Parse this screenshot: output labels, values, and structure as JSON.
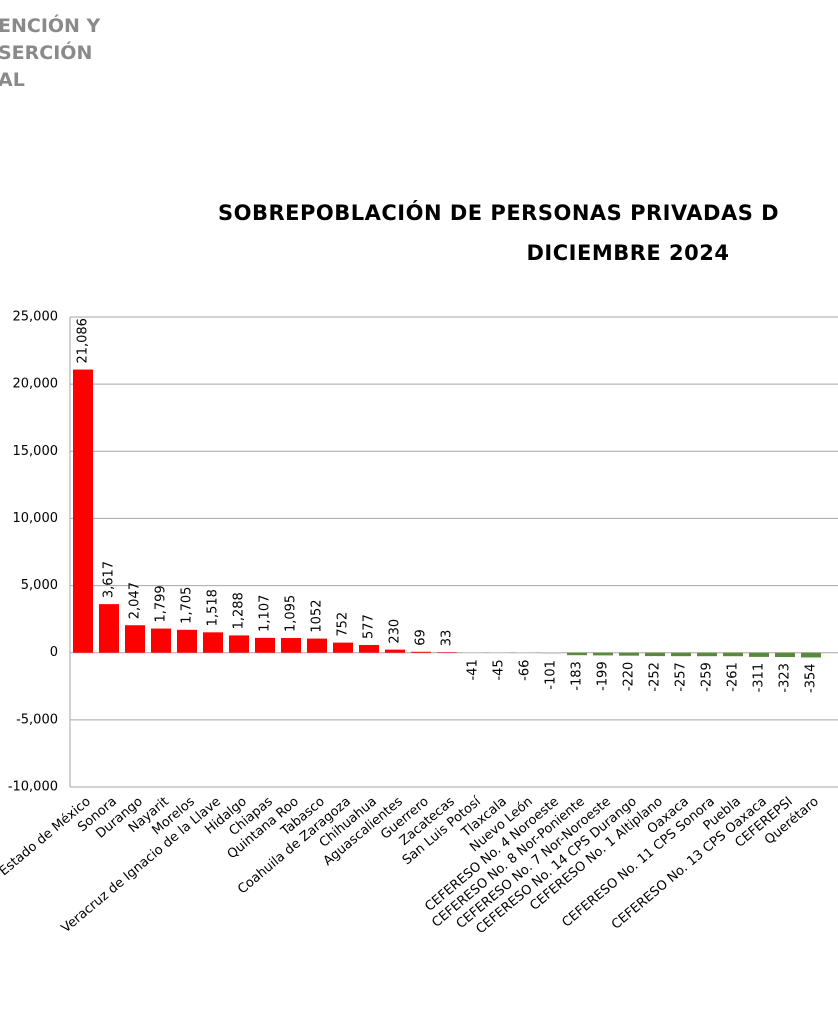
{
  "header": {
    "lines": [
      "ENCIÓN Y",
      "SERCIÓN",
      "AL"
    ]
  },
  "chart_data": {
    "type": "bar",
    "title": "SOBREPOBLACIÓN DE PERSONAS PRIVADAS D",
    "subtitle": "DICIEMBRE 2024",
    "categories": [
      "Estado de México",
      "Sonora",
      "Durango",
      "Nayarit",
      "Morelos",
      "Veracruz de Ignacio de la Llave",
      "Hidalgo",
      "Chiapas",
      "Quintana Roo",
      "Tabasco",
      "Coahuila de Zaragoza",
      "Chihuahua",
      "Aguascalientes",
      "Guerrero",
      "Zacatecas",
      "San Luis Potosí",
      "Tlaxcala",
      "Nuevo León",
      "CEFERESO No. 4 Noroeste",
      "CEFERESO No. 8 Nor-Poniente",
      "CEFERESO No. 7 Nor-Noroeste",
      "CEFERESO No. 14 CPS Durango",
      "CEFERESO No. 1 Altiplano",
      "Oaxaca",
      "CEFERESO No. 11 CPS Sonora",
      "Puebla",
      "CEFERESO No. 13 CPS Oaxaca",
      "CEFEREPSI",
      "Querétaro"
    ],
    "values": [
      21086,
      3617,
      2047,
      1799,
      1705,
      1518,
      1288,
      1107,
      1095,
      1052,
      752,
      577,
      230,
      69,
      33,
      -41,
      -45,
      -66,
      -101,
      -183,
      -199,
      -220,
      -252,
      -257,
      -259,
      -261,
      -311,
      -323,
      -354
    ],
    "value_labels": [
      "21,086",
      "3,617",
      "2,047",
      "1,799",
      "1,705",
      "1,518",
      "1,288",
      "1,107",
      "1,095",
      "1052",
      "752",
      "577",
      "230",
      "69",
      "33",
      "-41",
      "-45",
      "-66",
      "-101",
      "-183",
      "-199",
      "-220",
      "-252",
      "-257",
      "-259",
      "-261",
      "-311",
      "-323",
      "-354"
    ],
    "colors": [
      "#ff0000",
      "#ff0000",
      "#ff0000",
      "#ff0000",
      "#ff0000",
      "#ff0000",
      "#ff0000",
      "#ff0000",
      "#ff0000",
      "#ff0000",
      "#ff0000",
      "#ff0000",
      "#ff0000",
      "#ff0000",
      "#ff0000",
      "#d9d9d9",
      "#d9d9d9",
      "#d9d9d9",
      "#d9d9d9",
      "#5a8a3c",
      "#5a8a3c",
      "#5a8a3c",
      "#5a8a3c",
      "#5a8a3c",
      "#5a8a3c",
      "#5a8a3c",
      "#5a8a3c",
      "#5a8a3c",
      "#5a8a3c"
    ],
    "ylim": [
      -10000,
      25000
    ],
    "yticks": [
      {
        "value": -10000,
        "label": "-10,000"
      },
      {
        "value": -5000,
        "label": "-5,000"
      },
      0,
      {
        "value": 5000,
        "label": "5,000"
      },
      {
        "value": 10000,
        "label": "10,000"
      },
      {
        "value": 15000,
        "label": "15,000"
      },
      {
        "value": 20000,
        "label": "20,000"
      },
      {
        "value": 25000,
        "label": "25,000"
      }
    ],
    "grid": true
  }
}
